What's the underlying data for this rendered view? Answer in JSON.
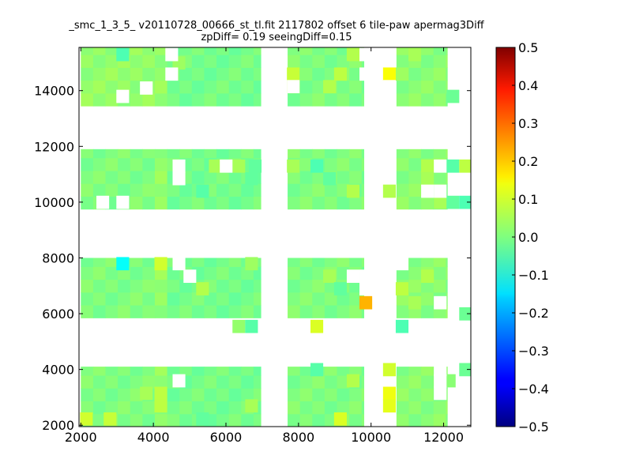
{
  "chart_data": {
    "type": "heatmap",
    "title": "_smc_1_3_5_ v20110728_00666_st_tl.fit 2117802 offset 6 tile-paw apermag3Diff",
    "subtitle": "zpDiff= 0.19 seeingDiff=0.15",
    "xlim": [
      1950,
      12750
    ],
    "ylim": [
      1950,
      15550
    ],
    "x_ticks": [
      2000,
      4000,
      6000,
      8000,
      10000,
      12000
    ],
    "y_ticks": [
      2000,
      4000,
      6000,
      8000,
      10000,
      12000,
      14000
    ],
    "colorbar": {
      "colormap": "jet",
      "range": [
        -0.5,
        0.5
      ],
      "ticks": [
        "0.5",
        "0.4",
        "0.3",
        "0.2",
        "0.1",
        "0.0",
        "−0.1",
        "−0.2",
        "−0.3",
        "−0.4",
        "−0.5"
      ]
    },
    "cell_size": [
      340,
      460
    ],
    "default_value": 0.0,
    "blocks": [
      {
        "x": [
          2000,
          4040
        ],
        "y": [
          1950,
          4100
        ],
        "value": 0.0
      },
      {
        "x": [
          2000,
          4040
        ],
        "y": [
          5850,
          8000
        ],
        "value": 0.0
      },
      {
        "x": [
          2000,
          4040
        ],
        "y": [
          9750,
          11900
        ],
        "value": 0.0
      },
      {
        "x": [
          2000,
          4040
        ],
        "y": [
          13450,
          15550
        ],
        "value": 0.02
      },
      {
        "x": [
          4040,
          4380
        ],
        "y": [
          1950,
          4100
        ],
        "value": 0.02
      },
      {
        "x": [
          4040,
          4380
        ],
        "y": [
          5850,
          8000
        ],
        "value": 0.02
      },
      {
        "x": [
          4040,
          4380
        ],
        "y": [
          9750,
          11900
        ],
        "value": 0.02
      },
      {
        "x": [
          4040,
          4380
        ],
        "y": [
          13450,
          15550
        ],
        "value": 0.02
      },
      {
        "x": [
          4380,
          6960
        ],
        "y": [
          1950,
          4100
        ],
        "value": -0.01
      },
      {
        "x": [
          4380,
          6960
        ],
        "y": [
          5850,
          8000
        ],
        "value": -0.01
      },
      {
        "x": [
          4380,
          6960
        ],
        "y": [
          9750,
          11900
        ],
        "value": -0.01
      },
      {
        "x": [
          4380,
          6960
        ],
        "y": [
          13450,
          15550
        ],
        "value": -0.01
      },
      {
        "x": [
          7700,
          9800
        ],
        "y": [
          1950,
          4100
        ],
        "value": 0.0
      },
      {
        "x": [
          7700,
          9800
        ],
        "y": [
          5850,
          8000
        ],
        "value": 0.0
      },
      {
        "x": [
          7700,
          9800
        ],
        "y": [
          9750,
          11900
        ],
        "value": 0.0
      },
      {
        "x": [
          7700,
          9800
        ],
        "y": [
          13450,
          15550
        ],
        "value": 0.0
      },
      {
        "x": [
          10700,
          12100
        ],
        "y": [
          1950,
          4100
        ],
        "value": 0.01
      },
      {
        "x": [
          10700,
          12100
        ],
        "y": [
          5850,
          8000
        ],
        "value": 0.01
      },
      {
        "x": [
          10700,
          12100
        ],
        "y": [
          9750,
          11900
        ],
        "value": 0.01
      },
      {
        "x": [
          10700,
          12100
        ],
        "y": [
          13450,
          15550
        ],
        "value": 0.01
      }
    ],
    "cells": [
      {
        "x": 3150,
        "y": 7800,
        "value": -0.12
      },
      {
        "x": 4200,
        "y": 7800,
        "value": 0.08
      },
      {
        "x": 3150,
        "y": 15300,
        "value": -0.05
      },
      {
        "x": 2150,
        "y": 2230,
        "value": 0.08
      },
      {
        "x": 2800,
        "y": 2230,
        "value": 0.07
      },
      {
        "x": 4200,
        "y": 3150,
        "value": 0.06
      },
      {
        "x": 4200,
        "y": 2700,
        "value": 0.06
      },
      {
        "x": 3800,
        "y": 3150,
        "value": 0.04
      },
      {
        "x": 5350,
        "y": 2230,
        "value": -0.03
      },
      {
        "x": 6700,
        "y": 2700,
        "value": 0.04
      },
      {
        "x": 5350,
        "y": 6900,
        "value": 0.05
      },
      {
        "x": 5350,
        "y": 10400,
        "value": -0.04
      },
      {
        "x": 5700,
        "y": 11300,
        "value": 0.04
      },
      {
        "x": 6350,
        "y": 11300,
        "value": 0.04
      },
      {
        "x": 6700,
        "y": 7800,
        "value": 0.03
      },
      {
        "x": 6350,
        "y": 5550,
        "value": 0.02
      },
      {
        "x": 6700,
        "y": 5550,
        "value": -0.04
      },
      {
        "x": 6700,
        "y": 10850,
        "value": -0.03
      },
      {
        "x": 4700,
        "y": 15000,
        "value": 0.03
      },
      {
        "x": 6800,
        "y": 11300,
        "value": -0.03
      },
      {
        "x": 7850,
        "y": 14600,
        "value": 0.07
      },
      {
        "x": 7850,
        "y": 14150,
        "value": 0.06
      },
      {
        "x": 8500,
        "y": 11300,
        "value": -0.05
      },
      {
        "x": 8850,
        "y": 10850,
        "value": -0.03
      },
      {
        "x": 8850,
        "y": 14150,
        "value": 0.05
      },
      {
        "x": 9150,
        "y": 14600,
        "value": 0.06
      },
      {
        "x": 9500,
        "y": 15300,
        "value": 0.05
      },
      {
        "x": 7850,
        "y": 11300,
        "value": 0.04
      },
      {
        "x": 8500,
        "y": 5550,
        "value": 0.09
      },
      {
        "x": 9850,
        "y": 6400,
        "value": 0.2
      },
      {
        "x": 8850,
        "y": 7350,
        "value": 0.04
      },
      {
        "x": 9150,
        "y": 6900,
        "value": -0.03
      },
      {
        "x": 8500,
        "y": 4000,
        "value": -0.04
      },
      {
        "x": 9500,
        "y": 3600,
        "value": 0.05
      },
      {
        "x": 9150,
        "y": 2230,
        "value": 0.09
      },
      {
        "x": 9500,
        "y": 10400,
        "value": 0.05
      },
      {
        "x": 10850,
        "y": 14600,
        "value": 0.03
      },
      {
        "x": 10500,
        "y": 14600,
        "value": 0.12
      },
      {
        "x": 10500,
        "y": 10400,
        "value": 0.05
      },
      {
        "x": 11200,
        "y": 15300,
        "value": 0.04
      },
      {
        "x": 10850,
        "y": 6900,
        "value": 0.06
      },
      {
        "x": 10850,
        "y": 5550,
        "value": -0.05
      },
      {
        "x": 11550,
        "y": 7350,
        "value": 0.05
      },
      {
        "x": 11200,
        "y": 6400,
        "value": 0.04
      },
      {
        "x": 10500,
        "y": 4000,
        "value": 0.08
      },
      {
        "x": 10500,
        "y": 3150,
        "value": 0.11
      },
      {
        "x": 10500,
        "y": 2700,
        "value": 0.1
      },
      {
        "x": 11550,
        "y": 11300,
        "value": 0.05
      },
      {
        "x": 11550,
        "y": 10850,
        "value": 0.04
      },
      {
        "x": 11900,
        "y": 10000,
        "value": 0.04
      },
      {
        "x": 12150,
        "y": 3600,
        "value": 0.01
      },
      {
        "x": 12600,
        "y": 4000,
        "value": -0.02
      },
      {
        "x": 12600,
        "y": 6000,
        "value": -0.02
      },
      {
        "x": 12250,
        "y": 10000,
        "value": -0.03
      },
      {
        "x": 12600,
        "y": 10000,
        "value": -0.05
      },
      {
        "x": 12250,
        "y": 11300,
        "value": -0.04
      },
      {
        "x": 12600,
        "y": 11300,
        "value": 0.06
      },
      {
        "x": 12250,
        "y": 13800,
        "value": -0.02
      }
    ],
    "holes": [
      {
        "x": 2600,
        "y": 10000
      },
      {
        "x": 3150,
        "y": 10000
      },
      {
        "x": 3800,
        "y": 14100
      },
      {
        "x": 3150,
        "y": 13800
      },
      {
        "x": 4700,
        "y": 11300
      },
      {
        "x": 4700,
        "y": 10850
      },
      {
        "x": 6000,
        "y": 11300
      },
      {
        "x": 5000,
        "y": 7350
      },
      {
        "x": 4700,
        "y": 7800
      },
      {
        "x": 4700,
        "y": 3600
      },
      {
        "x": 4500,
        "y": 15300
      },
      {
        "x": 4500,
        "y": 14600
      },
      {
        "x": 7850,
        "y": 14150
      },
      {
        "x": 9850,
        "y": 7350
      },
      {
        "x": 9850,
        "y": 6900
      },
      {
        "x": 9500,
        "y": 7350
      },
      {
        "x": 9850,
        "y": 15300
      },
      {
        "x": 9850,
        "y": 14600
      },
      {
        "x": 10850,
        "y": 7800
      },
      {
        "x": 10500,
        "y": 14150
      },
      {
        "x": 11900,
        "y": 4000
      },
      {
        "x": 11900,
        "y": 3600
      },
      {
        "x": 11900,
        "y": 3150
      },
      {
        "x": 11900,
        "y": 6400
      },
      {
        "x": 11900,
        "y": 11300
      },
      {
        "x": 11900,
        "y": 10400
      },
      {
        "x": 11550,
        "y": 10400
      }
    ]
  }
}
